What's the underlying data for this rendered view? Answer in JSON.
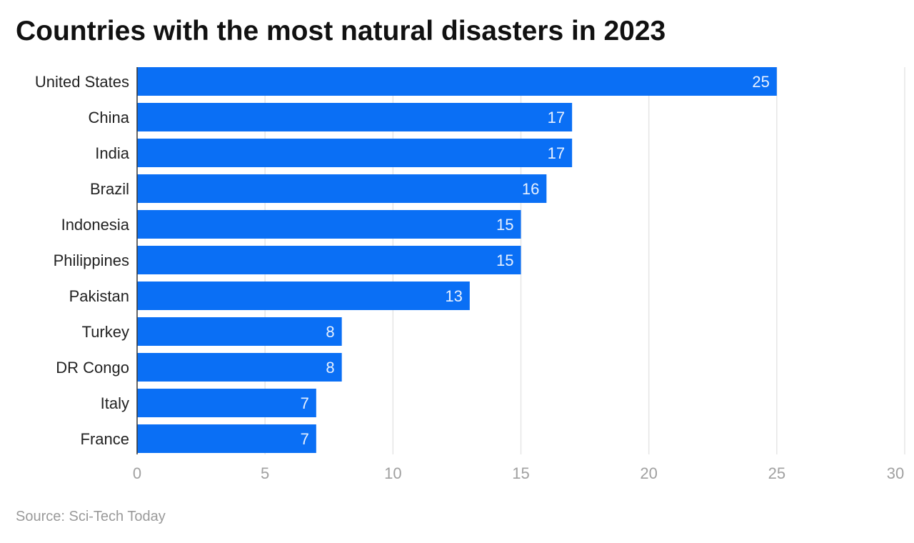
{
  "chart_data": {
    "type": "bar",
    "orientation": "horizontal",
    "title": "Countries with the most natural disasters in 2023",
    "source": "Source: Sci-Tech Today",
    "categories": [
      "United States",
      "China",
      "India",
      "Brazil",
      "Indonesia",
      "Philippines",
      "Pakistan",
      "Turkey",
      "DR Congo",
      "Italy",
      "France"
    ],
    "values": [
      25,
      17,
      17,
      16,
      15,
      15,
      13,
      8,
      8,
      7,
      7
    ],
    "xlim": [
      0,
      30
    ],
    "xticks": [
      0,
      5,
      10,
      15,
      20,
      25,
      30
    ],
    "grid": true,
    "data_labels": true,
    "colors": {
      "bar": "#0a6ff5",
      "label": "#e8f1ff",
      "grid": "#e6e6e6",
      "tick": "#a0a0a0",
      "category": "#222222"
    }
  }
}
